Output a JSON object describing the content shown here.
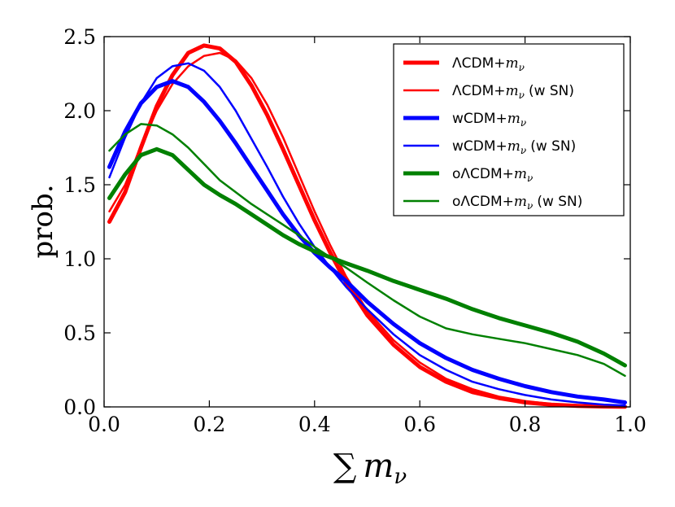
{
  "chart_data": {
    "type": "line",
    "xlabel": "∑ mν",
    "xlabel_sum": "∑",
    "xlabel_m": "m",
    "xlabel_sub": "ν",
    "ylabel": "prob.",
    "xlim": [
      0.0,
      1.0
    ],
    "ylim": [
      0.0,
      2.5
    ],
    "xticks": [
      "0.0",
      "0.2",
      "0.4",
      "0.6",
      "0.8",
      "1.0"
    ],
    "yticks": [
      "0.0",
      "0.5",
      "1.0",
      "1.5",
      "2.0",
      "2.5"
    ],
    "grid": false,
    "legend_position": "top-right",
    "series": [
      {
        "name": "ΛCDM+mν",
        "name_main": "ΛCDM+",
        "name_m": "m",
        "name_sub": "ν",
        "name_suffix": "",
        "color": "#ff0000",
        "width": 5,
        "x": [
          0.01,
          0.04,
          0.07,
          0.1,
          0.13,
          0.16,
          0.19,
          0.22,
          0.25,
          0.28,
          0.31,
          0.34,
          0.37,
          0.4,
          0.43,
          0.46,
          0.5,
          0.55,
          0.6,
          0.65,
          0.7,
          0.75,
          0.8,
          0.85,
          0.9,
          0.95,
          0.99
        ],
        "y": [
          1.25,
          1.45,
          1.75,
          2.03,
          2.24,
          2.39,
          2.44,
          2.42,
          2.33,
          2.17,
          1.97,
          1.74,
          1.5,
          1.26,
          1.04,
          0.84,
          0.62,
          0.42,
          0.27,
          0.17,
          0.1,
          0.06,
          0.03,
          0.015,
          0.007,
          0.003,
          0.001
        ]
      },
      {
        "name": "ΛCDM+mν (w SN)",
        "name_main": "ΛCDM+",
        "name_m": "m",
        "name_sub": "ν",
        "name_suffix": "(w SN)",
        "color": "#ff0000",
        "width": 2.5,
        "x": [
          0.01,
          0.04,
          0.07,
          0.1,
          0.13,
          0.16,
          0.19,
          0.22,
          0.25,
          0.28,
          0.31,
          0.34,
          0.37,
          0.4,
          0.43,
          0.46,
          0.5,
          0.55,
          0.6,
          0.65,
          0.7,
          0.75,
          0.8,
          0.85,
          0.9,
          0.95,
          0.99
        ],
        "y": [
          1.32,
          1.5,
          1.76,
          2.0,
          2.18,
          2.3,
          2.37,
          2.39,
          2.34,
          2.22,
          2.04,
          1.82,
          1.57,
          1.32,
          1.09,
          0.88,
          0.65,
          0.45,
          0.3,
          0.19,
          0.12,
          0.07,
          0.04,
          0.02,
          0.01,
          0.004,
          0.002
        ]
      },
      {
        "name": "wCDM+mν",
        "name_main": "wCDM+",
        "name_m": "m",
        "name_sub": "ν",
        "name_suffix": "",
        "color": "#0000ff",
        "width": 5,
        "x": [
          0.01,
          0.04,
          0.07,
          0.1,
          0.13,
          0.16,
          0.19,
          0.22,
          0.25,
          0.28,
          0.31,
          0.34,
          0.37,
          0.4,
          0.43,
          0.46,
          0.5,
          0.55,
          0.6,
          0.65,
          0.7,
          0.75,
          0.8,
          0.85,
          0.9,
          0.95,
          0.99
        ],
        "y": [
          1.62,
          1.86,
          2.05,
          2.16,
          2.2,
          2.16,
          2.06,
          1.93,
          1.78,
          1.62,
          1.46,
          1.3,
          1.16,
          1.04,
          0.94,
          0.85,
          0.71,
          0.56,
          0.43,
          0.33,
          0.25,
          0.19,
          0.14,
          0.1,
          0.07,
          0.05,
          0.03
        ]
      },
      {
        "name": "wCDM+mν (w SN)",
        "name_main": "wCDM+",
        "name_m": "m",
        "name_sub": "ν",
        "name_suffix": "(w SN)",
        "color": "#0000ff",
        "width": 2.5,
        "x": [
          0.01,
          0.04,
          0.07,
          0.1,
          0.13,
          0.16,
          0.19,
          0.22,
          0.25,
          0.28,
          0.31,
          0.34,
          0.37,
          0.4,
          0.43,
          0.46,
          0.5,
          0.55,
          0.6,
          0.65,
          0.7,
          0.75,
          0.8,
          0.85,
          0.9,
          0.95,
          0.99
        ],
        "y": [
          1.55,
          1.82,
          2.05,
          2.22,
          2.3,
          2.32,
          2.27,
          2.16,
          2.0,
          1.81,
          1.62,
          1.42,
          1.24,
          1.08,
          0.94,
          0.81,
          0.66,
          0.49,
          0.35,
          0.25,
          0.17,
          0.12,
          0.08,
          0.05,
          0.03,
          0.015,
          0.01
        ]
      },
      {
        "name": "oΛCDM+mν",
        "name_main": "oΛCDM+",
        "name_m": "m",
        "name_sub": "ν",
        "name_suffix": "",
        "color": "#008000",
        "width": 5,
        "x": [
          0.01,
          0.04,
          0.07,
          0.1,
          0.13,
          0.16,
          0.19,
          0.22,
          0.25,
          0.28,
          0.31,
          0.34,
          0.37,
          0.4,
          0.43,
          0.46,
          0.5,
          0.55,
          0.6,
          0.65,
          0.7,
          0.75,
          0.8,
          0.85,
          0.9,
          0.95,
          0.99
        ],
        "y": [
          1.41,
          1.57,
          1.7,
          1.74,
          1.7,
          1.6,
          1.5,
          1.43,
          1.37,
          1.3,
          1.23,
          1.16,
          1.1,
          1.05,
          1.01,
          0.97,
          0.92,
          0.85,
          0.79,
          0.73,
          0.66,
          0.6,
          0.55,
          0.5,
          0.44,
          0.36,
          0.28
        ]
      },
      {
        "name": "oΛCDM+mν (w SN)",
        "name_main": "oΛCDM+",
        "name_m": "m",
        "name_sub": "ν",
        "name_suffix": "(w SN)",
        "color": "#008000",
        "width": 2.5,
        "x": [
          0.01,
          0.04,
          0.07,
          0.1,
          0.13,
          0.16,
          0.19,
          0.22,
          0.25,
          0.28,
          0.31,
          0.34,
          0.37,
          0.4,
          0.43,
          0.46,
          0.5,
          0.55,
          0.6,
          0.65,
          0.7,
          0.75,
          0.8,
          0.85,
          0.9,
          0.95,
          0.99
        ],
        "y": [
          1.73,
          1.84,
          1.91,
          1.9,
          1.84,
          1.75,
          1.64,
          1.53,
          1.45,
          1.37,
          1.3,
          1.23,
          1.16,
          1.08,
          1.01,
          0.94,
          0.84,
          0.72,
          0.61,
          0.53,
          0.49,
          0.46,
          0.43,
          0.39,
          0.35,
          0.29,
          0.21
        ]
      }
    ]
  }
}
